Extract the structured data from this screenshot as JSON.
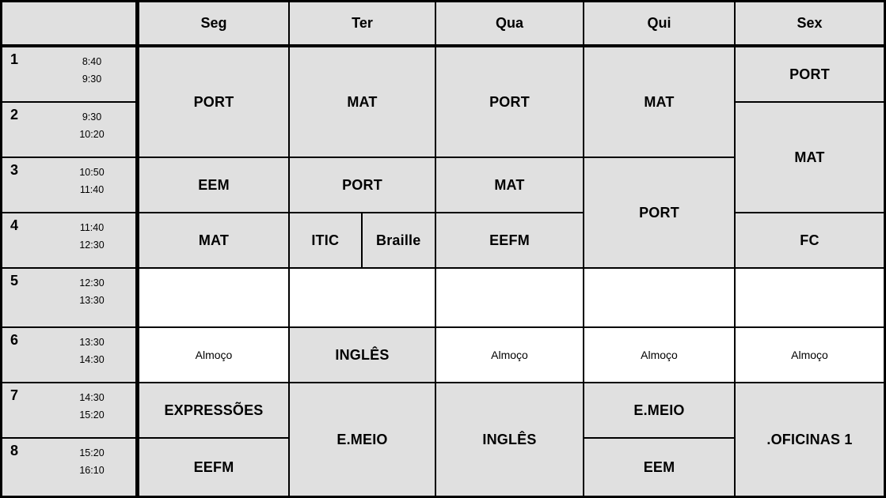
{
  "timetable": {
    "days": [
      "Seg",
      "Ter",
      "Qua",
      "Qui",
      "Sex"
    ],
    "periods": [
      {
        "num": "1",
        "start": "8:40",
        "end": "9:30"
      },
      {
        "num": "2",
        "start": "9:30",
        "end": "10:20"
      },
      {
        "num": "3",
        "start": "10:50",
        "end": "11:40"
      },
      {
        "num": "4",
        "start": "11:40",
        "end": "12:30"
      },
      {
        "num": "5",
        "start": "12:30",
        "end": "13:30"
      },
      {
        "num": "6",
        "start": "13:30",
        "end": "14:30"
      },
      {
        "num": "7",
        "start": "14:30",
        "end": "15:20"
      },
      {
        "num": "8",
        "start": "15:20",
        "end": "16:10"
      }
    ],
    "cells": {
      "seg_p12": "PORT",
      "seg_p3": "EEM",
      "seg_p4": "MAT",
      "seg_p5": "",
      "seg_p6": "Almoço",
      "seg_p7": "EXPRESSÕES",
      "seg_p8": "EEFM",
      "ter_p12": "MAT",
      "ter_p3": "PORT",
      "ter_p4_left": "ITIC",
      "ter_p4_right": "Braille",
      "ter_p5": "",
      "ter_p6": "INGLÊS",
      "ter_p78": "E.MEIO",
      "qua_p12": "PORT",
      "qua_p3": "MAT",
      "qua_p4": "EEFM",
      "qua_p5": "",
      "qua_p6": "Almoço",
      "qua_p78": "INGLÊS",
      "qui_p12": "MAT",
      "qui_p34": "PORT",
      "qui_p5": "",
      "qui_p6": "Almoço",
      "qui_p7": "E.MEIO",
      "qui_p8": "EEM",
      "sex_p1": "PORT",
      "sex_p23": "MAT",
      "sex_p4": "FC",
      "sex_p5": "",
      "sex_p6": "Almoço",
      "sex_p78": ".OFICINAS 1"
    },
    "colors": {
      "cell_bg": "#e0e0e0",
      "empty_bg": "#ffffff",
      "border": "#000000",
      "text": "#000000"
    }
  }
}
